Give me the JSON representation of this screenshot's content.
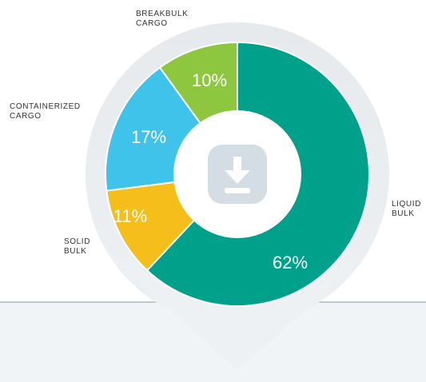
{
  "chart_data": {
    "type": "pie",
    "categories": [
      "LIQUID\nBULK",
      "SOLID\nBULK",
      "CONTAINERIZED\nCARGO",
      "BREAKBULK\nCARGO"
    ],
    "values": [
      62,
      11,
      17,
      10
    ],
    "value_labels": [
      "62%",
      "11%",
      "17%",
      "10%"
    ],
    "colors": [
      "#00a08a",
      "#f5be1a",
      "#40c3ea",
      "#8dc63f"
    ],
    "donut": true
  }
}
